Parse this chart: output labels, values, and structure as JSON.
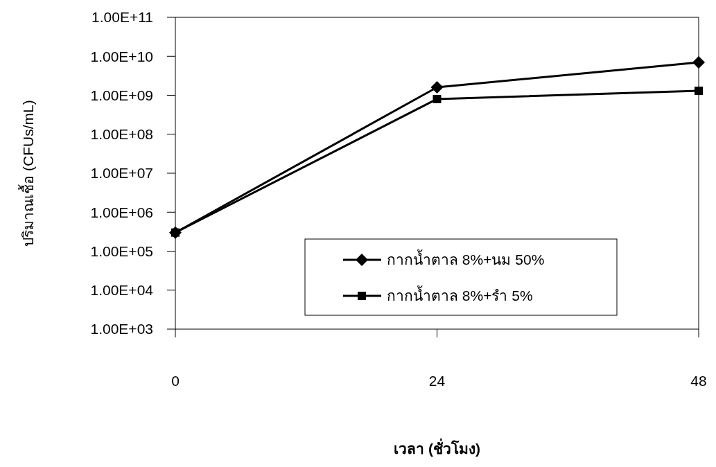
{
  "chart_data": {
    "type": "line",
    "xlabel": "เวลา (ชั่วโมง)",
    "ylabel": "ปริมาณเชื้อ (CFUs/mL)",
    "x": [
      0,
      24,
      48
    ],
    "xlim": [
      0,
      48
    ],
    "xticks": [
      0,
      24,
      48
    ],
    "ylim": [
      1000,
      100000000000
    ],
    "log": true,
    "yticks": [
      {
        "value": 1000,
        "label": "1.00E+03"
      },
      {
        "value": 10000,
        "label": "1.00E+04"
      },
      {
        "value": 100000,
        "label": "1.00E+05"
      },
      {
        "value": 1000000,
        "label": "1.00E+06"
      },
      {
        "value": 10000000,
        "label": "1.00E+07"
      },
      {
        "value": 100000000,
        "label": "1.00E+08"
      },
      {
        "value": 1000000000,
        "label": "1.00E+09"
      },
      {
        "value": 10000000000,
        "label": "1.00E+10"
      },
      {
        "value": 100000000000,
        "label": "1.00E+11"
      }
    ],
    "grid": false,
    "legend": "bottom",
    "line_style": "solid",
    "series": [
      {
        "name": "กากน้ำตาล 8%+นม 50%",
        "color": "#000000",
        "marker": "diamond",
        "values": [
          300000,
          1600000000,
          7000000000
        ]
      },
      {
        "name": "กากน้ำตาล 8%+รำ 5%",
        "color": "#000000",
        "marker": "square",
        "values": [
          300000,
          800000000,
          1300000000
        ]
      }
    ]
  }
}
